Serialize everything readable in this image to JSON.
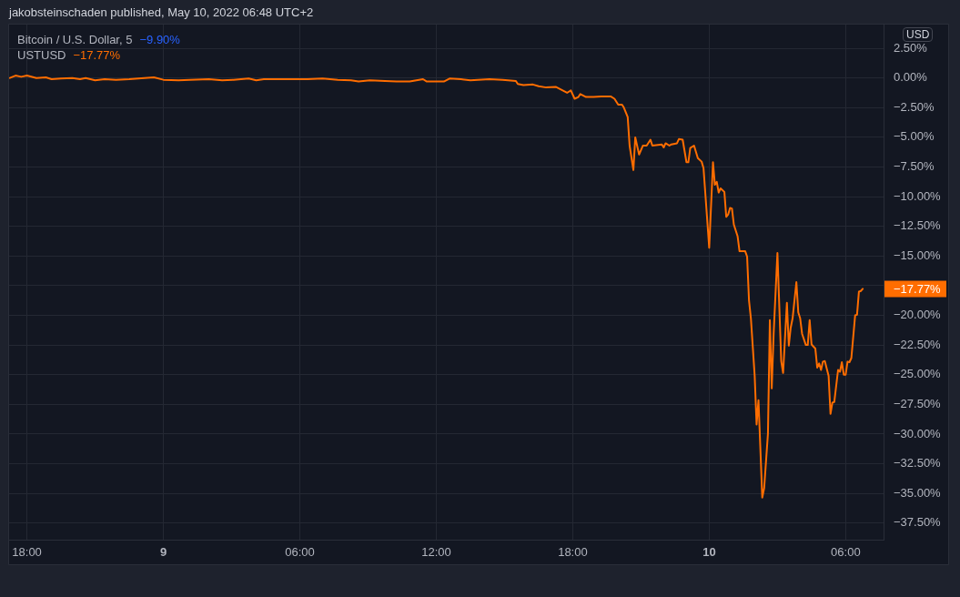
{
  "chart_data": {
    "type": "line",
    "annotations": [
      "jakobsteinschaden published, May 10, 2022 06:48 UTC+2",
      "Bitcoin / U.S. Dollar, 5",
      "−9.90%",
      "−17.77%",
      "−17.77%"
    ],
    "ylabel": "USD",
    "legend": "top left",
    "grid": true,
    "x": [
      "2022-05-08T17:15",
      "2022-05-08T17:30",
      "2022-05-08T17:45",
      "2022-05-08T18:00",
      "2022-05-08T18:25",
      "2022-05-08T18:50",
      "2022-05-08T19:05",
      "2022-05-08T19:30",
      "2022-05-08T20:00",
      "2022-05-08T20:20",
      "2022-05-08T20:35",
      "2022-05-08T21:00",
      "2022-05-08T21:25",
      "2022-05-08T21:55",
      "2022-05-08T22:30",
      "2022-05-08T23:10",
      "2022-05-08T23:35",
      "2022-05-09T00:00",
      "2022-05-09T00:40",
      "2022-05-09T01:10",
      "2022-05-09T02:00",
      "2022-05-09T02:35",
      "2022-05-09T03:05",
      "2022-05-09T03:45",
      "2022-05-09T04:05",
      "2022-05-09T04:25",
      "2022-05-09T05:00",
      "2022-05-09T05:50",
      "2022-05-09T06:20",
      "2022-05-09T07:00",
      "2022-05-09T07:40",
      "2022-05-09T08:15",
      "2022-05-09T08:35",
      "2022-05-09T09:05",
      "2022-05-09T09:45",
      "2022-05-09T10:15",
      "2022-05-09T10:50",
      "2022-05-09T11:25",
      "2022-05-09T11:35",
      "2022-05-09T12:20",
      "2022-05-09T12:35",
      "2022-05-09T13:05",
      "2022-05-09T13:30",
      "2022-05-09T14:20",
      "2022-05-09T14:55",
      "2022-05-09T15:30",
      "2022-05-09T15:35",
      "2022-05-09T15:50",
      "2022-05-09T16:15",
      "2022-05-09T16:30",
      "2022-05-09T16:50",
      "2022-05-09T17:15",
      "2022-05-09T17:30",
      "2022-05-09T17:45",
      "2022-05-09T17:55",
      "2022-05-09T18:05",
      "2022-05-09T18:15",
      "2022-05-09T18:20",
      "2022-05-09T18:35",
      "2022-05-09T18:55",
      "2022-05-09T19:15",
      "2022-05-09T19:40",
      "2022-05-09T19:50",
      "2022-05-09T20:00",
      "2022-05-09T20:10",
      "2022-05-09T20:15",
      "2022-05-09T20:25",
      "2022-05-09T20:30",
      "2022-05-09T20:40",
      "2022-05-09T20:45",
      "2022-05-09T20:55",
      "2022-05-09T21:05",
      "2022-05-09T21:15",
      "2022-05-09T21:25",
      "2022-05-09T21:30",
      "2022-05-09T21:55",
      "2022-05-09T22:00",
      "2022-05-09T22:05",
      "2022-05-09T22:15",
      "2022-05-09T22:20",
      "2022-05-09T22:35",
      "2022-05-09T22:40",
      "2022-05-09T22:50",
      "2022-05-09T23:00",
      "2022-05-09T23:05",
      "2022-05-09T23:10",
      "2022-05-09T23:20",
      "2022-05-09T23:30",
      "2022-05-09T23:40",
      "2022-05-09T23:45",
      "2022-05-10T00:00",
      "2022-05-10T00:10",
      "2022-05-10T00:15",
      "2022-05-10T00:20",
      "2022-05-10T00:25",
      "2022-05-10T00:30",
      "2022-05-10T00:40",
      "2022-05-10T00:45",
      "2022-05-10T00:50",
      "2022-05-10T00:55",
      "2022-05-10T01:00",
      "2022-05-10T01:05",
      "2022-05-10T01:15",
      "2022-05-10T01:20",
      "2022-05-10T01:35",
      "2022-05-10T01:40",
      "2022-05-10T01:45",
      "2022-05-10T01:50",
      "2022-05-10T02:00",
      "2022-05-10T02:05",
      "2022-05-10T02:10",
      "2022-05-10T02:20",
      "2022-05-10T02:25",
      "2022-05-10T02:35",
      "2022-05-10T02:40",
      "2022-05-10T02:45",
      "2022-05-10T02:50",
      "2022-05-10T03:00",
      "2022-05-10T03:10",
      "2022-05-10T03:15",
      "2022-05-10T03:25",
      "2022-05-10T03:30",
      "2022-05-10T03:35",
      "2022-05-10T03:40",
      "2022-05-10T03:50",
      "2022-05-10T03:55",
      "2022-05-10T04:00",
      "2022-05-10T04:05",
      "2022-05-10T04:15",
      "2022-05-10T04:20",
      "2022-05-10T04:25",
      "2022-05-10T04:30",
      "2022-05-10T04:40",
      "2022-05-10T04:45",
      "2022-05-10T04:50",
      "2022-05-10T04:55",
      "2022-05-10T05:00",
      "2022-05-10T05:05",
      "2022-05-10T05:15",
      "2022-05-10T05:20",
      "2022-05-10T05:25",
      "2022-05-10T05:30",
      "2022-05-10T05:40",
      "2022-05-10T05:45",
      "2022-05-10T05:50",
      "2022-05-10T05:55",
      "2022-05-10T06:00",
      "2022-05-10T06:05",
      "2022-05-10T06:10",
      "2022-05-10T06:15",
      "2022-05-10T06:25",
      "2022-05-10T06:30",
      "2022-05-10T06:35",
      "2022-05-10T06:40",
      "2022-05-10T06:45"
    ],
    "series": [
      {
        "name": "USTUSD",
        "color": "#ff6d00",
        "values": [
          0.0,
          0.2,
          0.1,
          0.2,
          0.0,
          0.05,
          -0.1,
          -0.05,
          0.0,
          -0.1,
          0.0,
          -0.2,
          -0.1,
          -0.15,
          -0.1,
          0.0,
          0.05,
          -0.15,
          -0.2,
          -0.15,
          -0.1,
          -0.2,
          -0.15,
          -0.05,
          -0.2,
          -0.1,
          -0.1,
          -0.1,
          -0.1,
          -0.05,
          -0.15,
          -0.2,
          -0.3,
          -0.2,
          -0.25,
          -0.3,
          -0.3,
          -0.1,
          -0.3,
          -0.3,
          -0.05,
          -0.1,
          -0.2,
          -0.1,
          -0.15,
          -0.25,
          -0.5,
          -0.6,
          -0.55,
          -0.7,
          -0.8,
          -0.75,
          -1.0,
          -1.25,
          -1.05,
          -1.75,
          -1.6,
          -1.35,
          -1.6,
          -1.6,
          -1.55,
          -1.55,
          -1.75,
          -2.25,
          -2.25,
          -2.5,
          -3.3,
          -5.7,
          -7.75,
          -5.0,
          -6.45,
          -5.7,
          -5.7,
          -5.2,
          -5.7,
          -5.6,
          -5.85,
          -5.5,
          -5.7,
          -5.6,
          -5.5,
          -5.15,
          -5.2,
          -7.1,
          -7.1,
          -5.9,
          -5.7,
          -6.75,
          -7.05,
          -7.6,
          -14.3,
          -7.1,
          -9.0,
          -8.75,
          -9.65,
          -9.3,
          -9.6,
          -11.7,
          -11.5,
          -10.95,
          -11.0,
          -12.35,
          -13.35,
          -14.6,
          -14.6,
          -15.05,
          -18.75,
          -20.25,
          -25.1,
          -29.2,
          -27.15,
          -35.35,
          -34.55,
          -29.95,
          -20.4,
          -26.15,
          -21.55,
          -14.75,
          -23.85,
          -24.85,
          -18.95,
          -22.55,
          -21.05,
          -20.25,
          -17.2,
          -19.75,
          -20.25,
          -21.55,
          -22.5,
          -22.5,
          -20.4,
          -22.45,
          -22.8,
          -24.4,
          -24.05,
          -24.6,
          -23.9,
          -23.85,
          -25.1,
          -28.3,
          -27.35,
          -27.3,
          -24.6,
          -24.75,
          -23.95,
          -25.0,
          -25.0,
          -23.9,
          -23.95,
          -23.6,
          -20.0,
          -19.95,
          -18.0,
          -17.95,
          -17.77
        ]
      }
    ],
    "xlim": [
      "2022-05-08T17:13",
      "2022-05-10T07:40"
    ],
    "xticks": [
      {
        "value": "2022-05-08T18:00",
        "label": "18:00"
      },
      {
        "value": "2022-05-09T00:00",
        "label": "9"
      },
      {
        "value": "2022-05-09T06:00",
        "label": "06:00"
      },
      {
        "value": "2022-05-09T12:00",
        "label": "12:00"
      },
      {
        "value": "2022-05-09T18:00",
        "label": "18:00"
      },
      {
        "value": "2022-05-10T00:00",
        "label": "10"
      },
      {
        "value": "2022-05-10T06:00",
        "label": "06:00"
      }
    ],
    "ylim": [
      -38.9,
      4.5
    ],
    "yticks": [
      {
        "value": 2.5,
        "label": "2.50%"
      },
      {
        "value": 0,
        "label": "0.00%"
      },
      {
        "value": -2.5,
        "label": "−2.50%"
      },
      {
        "value": -5,
        "label": "−5.00%"
      },
      {
        "value": -7.5,
        "label": "−7.50%"
      },
      {
        "value": -10,
        "label": "−10.00%"
      },
      {
        "value": -12.5,
        "label": "−12.50%"
      },
      {
        "value": -15,
        "label": "−15.00%"
      },
      {
        "value": -17.5,
        "label": null
      },
      {
        "value": -20,
        "label": "−20.00%"
      },
      {
        "value": -22.5,
        "label": "−22.50%"
      },
      {
        "value": -25,
        "label": "−25.00%"
      },
      {
        "value": -27.5,
        "label": "−27.50%"
      },
      {
        "value": -30,
        "label": "−30.00%"
      },
      {
        "value": -32.5,
        "label": "−32.50%"
      },
      {
        "value": -35,
        "label": "−35.00%"
      },
      {
        "value": -37.5,
        "label": "−37.50%"
      }
    ]
  }
}
